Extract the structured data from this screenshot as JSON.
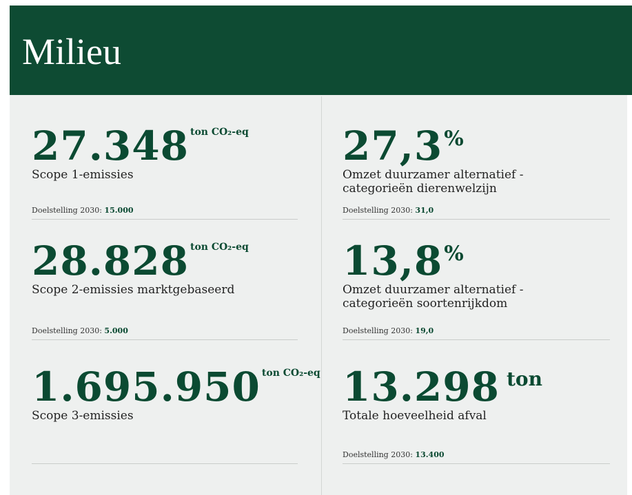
{
  "header": {
    "title": "Milieu"
  },
  "columns": [
    {
      "items": [
        {
          "value": "27.348",
          "unit": "ton CO₂-eq",
          "label_lines": [
            "Scope 1-emissies"
          ],
          "target_label": "Doelstelling 2030:",
          "target_value": "15.000"
        },
        {
          "value": "28.828",
          "unit": "ton CO₂-eq",
          "label_lines": [
            "Scope 2-emissies marktgebaseerd"
          ],
          "target_label": "Doelstelling 2030:",
          "target_value": "5.000"
        },
        {
          "value": "1.695.950",
          "unit": "ton CO₂-eq",
          "label_lines": [
            "Scope 3-emissies"
          ]
        }
      ]
    },
    {
      "items": [
        {
          "value": "27,3",
          "unit": "%",
          "label_lines": [
            "Omzet duurzamer alternatief -",
            "categorieën dierenwelzijn"
          ],
          "target_label": "Doelstelling 2030:",
          "target_value": "31,0"
        },
        {
          "value": "13,8",
          "unit": "%",
          "label_lines": [
            "Omzet duurzamer alternatief -",
            "categorieën soortenrijkdom"
          ],
          "target_label": "Doelstelling 2030:",
          "target_value": "19,0"
        },
        {
          "value": "13.298",
          "unit": "ton",
          "label_lines": [
            "Totale hoeveelheid afval"
          ],
          "target_label": "Doelstelling 2030:",
          "target_value": "13.400"
        }
      ]
    }
  ]
}
